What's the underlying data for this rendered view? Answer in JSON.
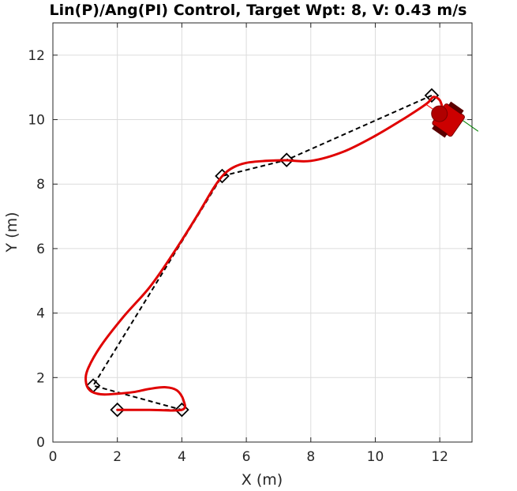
{
  "chart_data": {
    "type": "line",
    "title": "Lin(P)/Ang(PI) Control, Target Wpt: 8, V: 0.43 m/s",
    "xlabel": "X (m)",
    "ylabel": "Y (m)",
    "xlim": [
      0,
      13
    ],
    "ylim": [
      0,
      13
    ],
    "xticks": [
      0,
      2,
      4,
      6,
      8,
      10,
      12
    ],
    "yticks": [
      0,
      2,
      4,
      6,
      8,
      10,
      12
    ],
    "grid": true,
    "colors": {
      "trajectory": "#e00000",
      "reference": "#000000",
      "robot": "#cc0000",
      "heading": "#ff0000",
      "side": "#008000"
    },
    "series": [
      {
        "role": "waypoints",
        "marker": "diamond",
        "x": [
          2.0,
          4.0,
          1.25,
          5.25,
          7.25,
          11.75
        ],
        "y": [
          1.0,
          1.0,
          1.75,
          8.25,
          8.75,
          10.75
        ]
      },
      {
        "role": "reference-path",
        "style": "dashed",
        "x": [
          2.0,
          4.0,
          1.25,
          5.25,
          7.25,
          11.75
        ],
        "y": [
          1.0,
          1.0,
          1.75,
          8.25,
          8.75,
          10.75
        ]
      },
      {
        "role": "trajectory",
        "style": "solid",
        "x": [
          2.0,
          3.0,
          4.0,
          4.05,
          3.85,
          3.5,
          3.0,
          2.5,
          2.0,
          1.5,
          1.15,
          1.02,
          1.1,
          1.5,
          2.2,
          3.0,
          3.7,
          4.4,
          5.0,
          5.3,
          5.6,
          6.0,
          6.6,
          7.2,
          8.0,
          9.0,
          10.0,
          11.0,
          11.6,
          11.8,
          12.0,
          12.1
        ],
        "y": [
          1.0,
          1.0,
          1.0,
          1.3,
          1.6,
          1.7,
          1.65,
          1.55,
          1.5,
          1.48,
          1.6,
          1.9,
          2.3,
          3.0,
          3.9,
          4.8,
          5.8,
          6.9,
          7.9,
          8.3,
          8.52,
          8.66,
          8.72,
          8.74,
          8.72,
          9.0,
          9.5,
          10.1,
          10.5,
          10.7,
          10.6,
          10.3
        ]
      }
    ],
    "robot": {
      "x": 12.25,
      "y": 10.0,
      "heading_deg": -35
    }
  }
}
